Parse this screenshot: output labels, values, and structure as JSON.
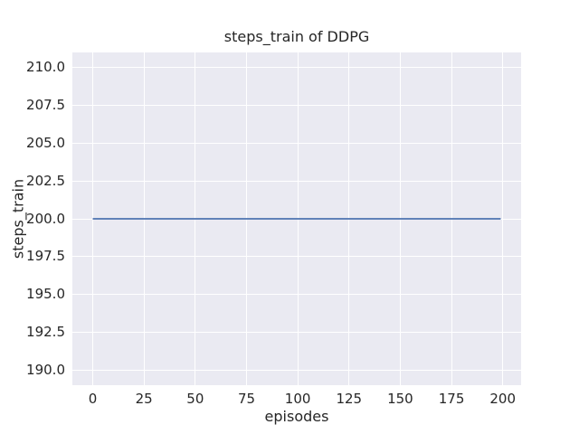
{
  "colors": {
    "figure_background": "#ffffff",
    "axes_background": "#eaeaf2",
    "grid": "#ffffff",
    "line": "#4c72b0",
    "text": "#262626"
  },
  "chart_data": {
    "type": "line",
    "title": "steps_train of DDPG",
    "xlabel": "episodes",
    "ylabel": "steps_train",
    "xlim": [
      -9.95,
      208.95
    ],
    "ylim": [
      189,
      211
    ],
    "grid": true,
    "legend": false,
    "x_ticks": {
      "values": [
        0,
        25,
        50,
        75,
        100,
        125,
        150,
        175,
        200
      ],
      "labels": [
        "0",
        "25",
        "50",
        "75",
        "100",
        "125",
        "150",
        "175",
        "200"
      ]
    },
    "y_ticks": {
      "values": [
        190,
        192.5,
        195,
        197.5,
        200,
        202.5,
        205,
        207.5,
        210
      ],
      "labels": [
        "190.0",
        "192.5",
        "195.0",
        "197.5",
        "200.0",
        "202.5",
        "205.0",
        "207.5",
        "210.0"
      ]
    },
    "series": [
      {
        "name": "steps_train",
        "color": "#4c72b0",
        "line_width": 1.8,
        "x": [
          0,
          199
        ],
        "y": [
          200,
          200
        ]
      }
    ]
  }
}
